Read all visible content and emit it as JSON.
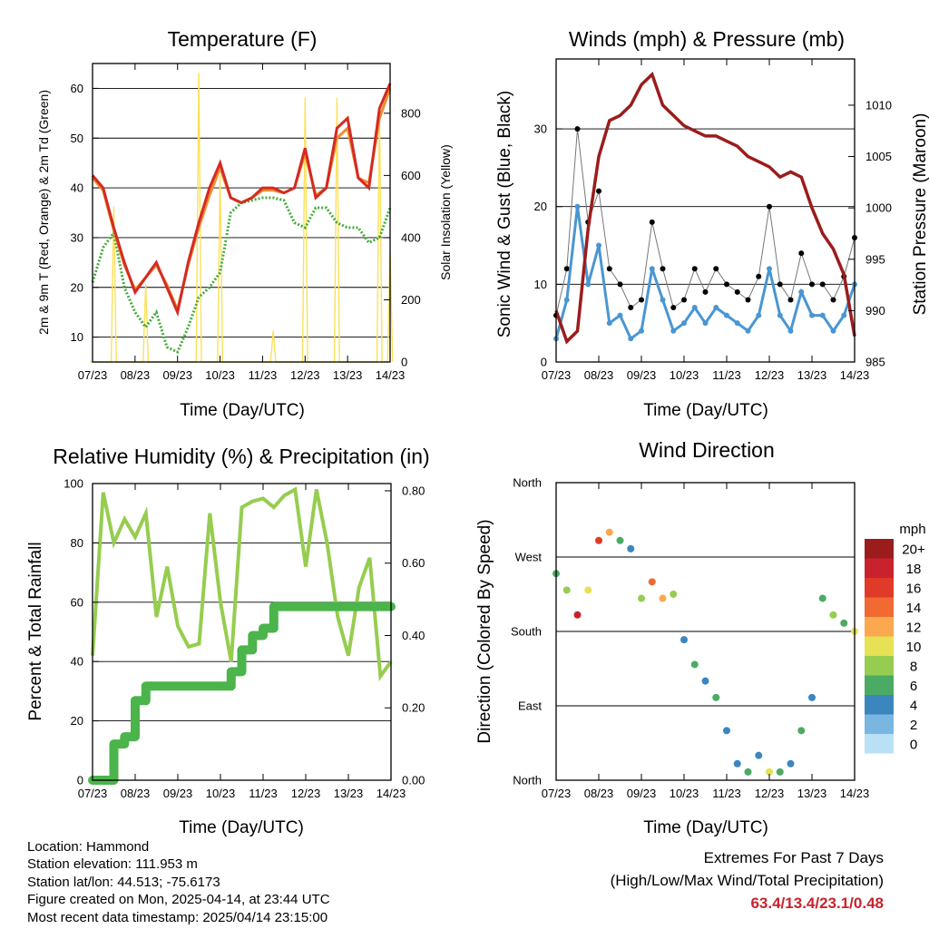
{
  "x_ticks": [
    "07/23",
    "08/23",
    "09/23",
    "10/23",
    "11/23",
    "12/23",
    "13/23",
    "14/23"
  ],
  "xlabel": "Time (Day/UTC)",
  "colors": {
    "t2m": "#d42a22",
    "t9m": "#f08c32",
    "td": "#45ac3c",
    "solar": "#fce15a",
    "wind": "#4a96d2",
    "gust": "#000000",
    "pressure": "#9b1c1c",
    "rh": "#96cd50",
    "precip": "#4bb44b",
    "text_red": "#c8232c"
  },
  "temperature": {
    "title": "Temperature (F)",
    "ylabel_left": "2m & 9m T (Red, Orange) & 2m Td (Green)",
    "ylabel_right": "Solar Insolation (Yellow)",
    "left_ticks": [
      10,
      20,
      30,
      40,
      50,
      60
    ],
    "right_ticks": [
      0,
      200,
      400,
      600,
      800
    ],
    "chart_data": {
      "type": "line",
      "x": [
        0,
        0.25,
        0.5,
        0.75,
        1.0,
        1.25,
        1.5,
        1.75,
        2.0,
        2.25,
        2.5,
        2.75,
        3.0,
        3.25,
        3.5,
        3.75,
        4.0,
        4.25,
        4.5,
        4.75,
        5.0,
        5.25,
        5.5,
        5.75,
        6.0,
        6.25,
        6.5,
        6.75,
        7.0
      ],
      "xlim": [
        0,
        7
      ],
      "ylim": [
        5,
        65
      ],
      "y2lim": [
        0,
        960
      ],
      "series": [
        {
          "name": "2m T",
          "axis": "left",
          "values": [
            42.5,
            40,
            32,
            25,
            19,
            22,
            25,
            20,
            15,
            25,
            33,
            40,
            45,
            38,
            37,
            38,
            40,
            40,
            39,
            40,
            48,
            38,
            40,
            52,
            54,
            42,
            40,
            56,
            61
          ]
        },
        {
          "name": "9m T",
          "axis": "left",
          "values": [
            42,
            39.5,
            31.5,
            24.5,
            19.5,
            22,
            24.5,
            20.5,
            15.5,
            24.5,
            32,
            38.5,
            44,
            38,
            37,
            38,
            39.5,
            39.5,
            39,
            40,
            47,
            38.5,
            40,
            50,
            52,
            42,
            41,
            54,
            60
          ]
        },
        {
          "name": "2m Td",
          "axis": "left",
          "values": [
            21,
            28,
            31,
            20,
            15,
            12,
            15,
            8,
            7,
            12,
            18,
            20,
            23,
            35,
            37,
            37.5,
            38,
            38,
            37.5,
            33,
            32,
            36,
            36,
            33,
            32,
            32,
            29,
            30,
            36
          ]
        },
        {
          "name": "Solar Insolation",
          "axis": "right",
          "values": [
            0,
            0,
            500,
            0,
            0,
            250,
            0,
            0,
            0,
            0,
            930,
            0,
            600,
            0,
            0,
            0,
            0,
            100,
            0,
            0,
            850,
            0,
            0,
            850,
            0,
            0,
            0,
            820,
            350
          ]
        }
      ]
    }
  },
  "winds": {
    "title": "Winds (mph) & Pressure (mb)",
    "ylabel_left": "Sonic Wind & Gust (Blue, Black)",
    "ylabel_right": "Station Pressure (Maroon)",
    "left_ticks": [
      0,
      10,
      20,
      30
    ],
    "right_ticks": [
      985,
      990,
      995,
      1000,
      1005,
      1010
    ],
    "chart_data": {
      "type": "scatter",
      "x": [
        0,
        0.25,
        0.5,
        0.75,
        1.0,
        1.25,
        1.5,
        1.75,
        2.0,
        2.25,
        2.5,
        2.75,
        3.0,
        3.25,
        3.5,
        3.75,
        4.0,
        4.25,
        4.5,
        4.75,
        5.0,
        5.25,
        5.5,
        5.75,
        6.0,
        6.25,
        6.5,
        6.75,
        7.0
      ],
      "xlim": [
        0,
        7
      ],
      "ylim": [
        0,
        39
      ],
      "y2lim": [
        985,
        1014.5
      ],
      "series": [
        {
          "name": "Sonic Wind",
          "axis": "left",
          "kind": "points",
          "values": [
            3,
            8,
            20,
            10,
            15,
            5,
            6,
            3,
            4,
            12,
            8,
            4,
            5,
            7,
            5,
            7,
            6,
            5,
            4,
            6,
            12,
            6,
            4,
            9,
            6,
            6,
            4,
            6,
            10
          ]
        },
        {
          "name": "Gust",
          "axis": "left",
          "kind": "points",
          "values": [
            6,
            12,
            30,
            18,
            22,
            12,
            10,
            7,
            8,
            18,
            12,
            7,
            8,
            12,
            9,
            12,
            10,
            9,
            8,
            11,
            20,
            10,
            8,
            14,
            10,
            10,
            8,
            11,
            16
          ]
        },
        {
          "name": "Station Pressure",
          "axis": "right",
          "kind": "line",
          "values": [
            990,
            987,
            988,
            998,
            1005,
            1008.5,
            1009,
            1010,
            1012,
            1013,
            1010,
            1009,
            1008,
            1007.5,
            1007,
            1007,
            1006.5,
            1006,
            1005,
            1004.5,
            1004,
            1003,
            1003.5,
            1003,
            1000,
            997.5,
            996,
            993.5,
            987.5
          ]
        }
      ]
    }
  },
  "humidity": {
    "title": "Relative Humidity (%) & Precipitation (in)",
    "ylabel_left": "Percent & Total Rainfall",
    "left_ticks": [
      0,
      20,
      40,
      60,
      80,
      100
    ],
    "right_ticks": [
      "0.00",
      "0.20",
      "0.40",
      "0.60",
      "0.80"
    ],
    "chart_data": {
      "type": "line",
      "x": [
        0,
        0.25,
        0.5,
        0.75,
        1.0,
        1.25,
        1.5,
        1.75,
        2.0,
        2.25,
        2.5,
        2.75,
        3.0,
        3.25,
        3.5,
        3.75,
        4.0,
        4.25,
        4.5,
        4.75,
        5.0,
        5.25,
        5.5,
        5.75,
        6.0,
        6.25,
        6.5,
        6.75,
        7.0
      ],
      "xlim": [
        0,
        7
      ],
      "ylim": [
        0,
        100
      ],
      "y2lim": [
        0,
        0.82
      ],
      "series": [
        {
          "name": "Relative Humidity",
          "axis": "left",
          "values": [
            42,
            97,
            80,
            88,
            82,
            90,
            55,
            72,
            52,
            45,
            46,
            90,
            60,
            40,
            92,
            94,
            95,
            92,
            96,
            98,
            72,
            98,
            80,
            55,
            42,
            65,
            75,
            35,
            40
          ]
        },
        {
          "name": "Total Rainfall",
          "axis": "right",
          "values": [
            0,
            0,
            0.1,
            0.12,
            0.22,
            0.26,
            0.26,
            0.26,
            0.26,
            0.26,
            0.26,
            0.26,
            0.26,
            0.3,
            0.36,
            0.4,
            0.42,
            0.48,
            0.48,
            0.48,
            0.48,
            0.48,
            0.48,
            0.48,
            0.48,
            0.48,
            0.48,
            0.48,
            0.48
          ]
        }
      ]
    }
  },
  "direction": {
    "title": "Wind Direction",
    "ylabel": "Direction (Colored By Speed)",
    "y_ticks": [
      "North",
      "East",
      "South",
      "West",
      "North"
    ],
    "colorbar_title": "mph",
    "colorbar_labels": [
      "20+",
      "18",
      "16",
      "14",
      "12",
      "10",
      "8",
      "6",
      "4",
      "2",
      "0"
    ],
    "colorbar_colors": [
      "#9b1c1c",
      "#c8232c",
      "#e03a28",
      "#f06a32",
      "#fba84e",
      "#e6e155",
      "#96cd50",
      "#4bab64",
      "#3c86c0",
      "#7ab7e0",
      "#b9e1f6"
    ],
    "chart_data": {
      "type": "scatter",
      "x": [
        0,
        0.25,
        0.5,
        0.75,
        1.0,
        1.25,
        1.5,
        1.75,
        2.0,
        2.25,
        2.5,
        2.75,
        3.0,
        3.25,
        3.5,
        3.75,
        4.0,
        4.25,
        4.5,
        4.75,
        5.0,
        5.25,
        5.5,
        5.75,
        6.0,
        6.25,
        6.5,
        6.75,
        7.0
      ],
      "xlim": [
        0,
        7
      ],
      "ylim": [
        0,
        360
      ],
      "direction_deg": [
        250,
        230,
        200,
        230,
        290,
        300,
        290,
        280,
        220,
        240,
        220,
        225,
        170,
        140,
        120,
        100,
        60,
        20,
        10,
        30,
        10,
        10,
        20,
        60,
        100,
        220,
        200,
        190,
        180
      ],
      "speed_mph": [
        6,
        8,
        18,
        10,
        16,
        12,
        6,
        4,
        8,
        14,
        12,
        8,
        4,
        6,
        4,
        6,
        4,
        4,
        6,
        4,
        10,
        6,
        4,
        6,
        4,
        6,
        8,
        6,
        10
      ]
    }
  },
  "info": {
    "location": "Location: Hammond",
    "elevation": "Station elevation: 111.953 m",
    "latlon": "Station lat/lon: 44.513; -75.6173",
    "created": "Figure created on Mon, 2025-04-14, at 23:44 UTC",
    "recent": "Most recent data timestamp: 2025/04/14 23:15:00"
  },
  "extremes": {
    "title": "Extremes For Past 7 Days",
    "subtitle": "(High/Low/Max Wind/Total Precipitation)",
    "values": "63.4/13.4/23.1/0.48"
  }
}
